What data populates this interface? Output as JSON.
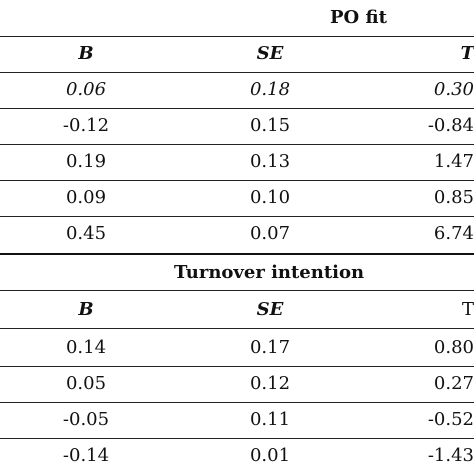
{
  "sections": [
    {
      "title": "PO fit",
      "headers": {
        "b": "B",
        "se": "SE",
        "t": "T"
      },
      "rows": [
        {
          "b": "0.06",
          "se": "0.18",
          "t": "0.30"
        },
        {
          "b": "-0.12",
          "se": "0.15",
          "t": "-0.84"
        },
        {
          "b": "0.19",
          "se": "0.13",
          "t": "1.47"
        },
        {
          "b": "0.09",
          "se": "0.10",
          "t": "0.85"
        },
        {
          "b": "0.45",
          "se": "0.07",
          "t": "6.74"
        }
      ]
    },
    {
      "title": "Turnover intention",
      "headers": {
        "b": "B",
        "se": "SE",
        "t": "T"
      },
      "rows": [
        {
          "b": "0.14",
          "se": "0.17",
          "t": "0.80"
        },
        {
          "b": "0.05",
          "se": "0.12",
          "t": "0.27"
        },
        {
          "b": "-0.05",
          "se": "0.11",
          "t": "-0.52"
        },
        {
          "b": "-0.14",
          "se": "0.01",
          "t": "-1.43"
        }
      ]
    }
  ]
}
